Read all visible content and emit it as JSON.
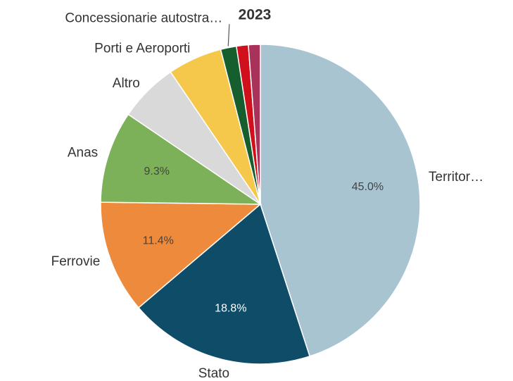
{
  "chart_data": {
    "type": "pie",
    "title": "2023",
    "categories": [
      "Territor…",
      "Stato",
      "Ferrovie",
      "Anas",
      "Altro",
      "Porti e Aeroporti",
      "Concessionarie autostra…",
      null,
      null
    ],
    "values": [
      45.0,
      18.8,
      11.4,
      9.3,
      6.0,
      5.5,
      1.6,
      1.2,
      1.2
    ],
    "value_labels": [
      "45.0%",
      "18.8%",
      "11.4%",
      "9.3%",
      null,
      null,
      null,
      null,
      null
    ],
    "colors": [
      "#a7c4d0",
      "#0f4c68",
      "#ee8a3c",
      "#7cb15a",
      "#d9d9d9",
      "#f5c74a",
      "#165e2e",
      "#d0111c",
      "#a8325a"
    ]
  }
}
